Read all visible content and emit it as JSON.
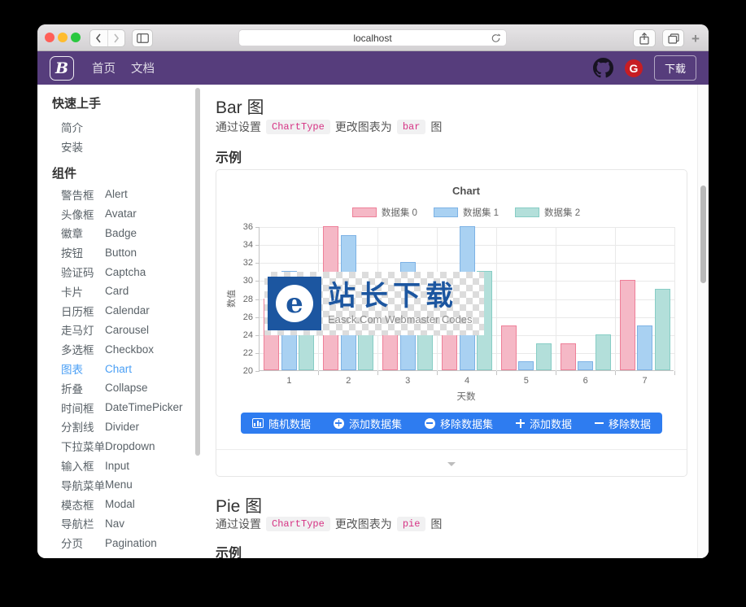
{
  "browser": {
    "url": "localhost",
    "new_tab_label": "+"
  },
  "navbar": {
    "logo_letter": "B",
    "links": [
      {
        "label": "首页"
      },
      {
        "label": "文档"
      }
    ],
    "gitee_letter": "G",
    "download_label": "下载",
    "colors": {
      "bg": "#563d7c",
      "gitee_red": "#c71d23"
    }
  },
  "sidebar": {
    "sections": [
      {
        "title": "快速上手",
        "items": [
          {
            "zh": "简介",
            "en": ""
          },
          {
            "zh": "安装",
            "en": ""
          }
        ]
      },
      {
        "title": "组件",
        "items": [
          {
            "zh": "警告框",
            "en": "Alert"
          },
          {
            "zh": "头像框",
            "en": "Avatar"
          },
          {
            "zh": "徽章",
            "en": "Badge"
          },
          {
            "zh": "按钮",
            "en": "Button"
          },
          {
            "zh": "验证码",
            "en": "Captcha"
          },
          {
            "zh": "卡片",
            "en": "Card"
          },
          {
            "zh": "日历框",
            "en": "Calendar"
          },
          {
            "zh": "走马灯",
            "en": "Carousel"
          },
          {
            "zh": "多选框",
            "en": "Checkbox"
          },
          {
            "zh": "图表",
            "en": "Chart",
            "active": true
          },
          {
            "zh": "折叠",
            "en": "Collapse"
          },
          {
            "zh": "时间框",
            "en": "DateTimePicker"
          },
          {
            "zh": "分割线",
            "en": "Divider"
          },
          {
            "zh": "下拉菜单",
            "en": "Dropdown"
          },
          {
            "zh": "输入框",
            "en": "Input"
          },
          {
            "zh": "导航菜单",
            "en": "Menu"
          },
          {
            "zh": "模态框",
            "en": "Modal"
          },
          {
            "zh": "导航栏",
            "en": "Nav"
          },
          {
            "zh": "分页",
            "en": "Pagination"
          }
        ]
      }
    ],
    "active_color": "#4a9ff5"
  },
  "content": {
    "bar_section": {
      "title": "Bar 图",
      "desc_prefix": "通过设置",
      "code1": "ChartType",
      "desc_mid": "更改图表为",
      "code2": "bar",
      "desc_suffix": "图",
      "example_label": "示例"
    },
    "buttons": [
      {
        "icon": "bar-chart-icon",
        "label": "随机数据"
      },
      {
        "icon": "plus-circle-icon",
        "label": "添加数据集"
      },
      {
        "icon": "minus-circle-icon",
        "label": "移除数据集"
      },
      {
        "icon": "plus-icon",
        "label": "添加数据"
      },
      {
        "icon": "minus-icon",
        "label": "移除数据"
      }
    ],
    "watermark": {
      "title": "站长下载",
      "subtitle": "Easck.Com Webmaster Codes",
      "logo_letter": "e"
    },
    "pie_section": {
      "title": "Pie 图",
      "desc_prefix": "通过设置",
      "code1": "ChartType",
      "desc_mid": "更改图表为",
      "code2": "pie",
      "desc_suffix": "图",
      "example_label": "示例"
    },
    "button_bar_color": "#2e7cf0",
    "code_color": "#d63384"
  },
  "chart_data": {
    "type": "bar",
    "title": "Chart",
    "categories": [
      "1",
      "2",
      "3",
      "4",
      "5",
      "6",
      "7"
    ],
    "series": [
      {
        "name": "数据集 0",
        "fill": "#f5b8c6",
        "border": "#ee7f98",
        "values": [
          28,
          36,
          27,
          30,
          25,
          23,
          30
        ]
      },
      {
        "name": "数据集 1",
        "fill": "#a9d1f2",
        "border": "#7db2e5",
        "values": [
          31,
          35,
          32,
          36,
          21,
          21,
          25
        ]
      },
      {
        "name": "数据集 2",
        "fill": "#b3dfda",
        "border": "#87cdc5",
        "values": [
          27,
          29,
          28,
          31,
          23,
          24,
          29
        ]
      }
    ],
    "xlabel": "天数",
    "ylabel": "数值",
    "ylim": [
      20,
      36
    ],
    "ytick_step": 2,
    "grid": true,
    "legend_position": "top"
  }
}
